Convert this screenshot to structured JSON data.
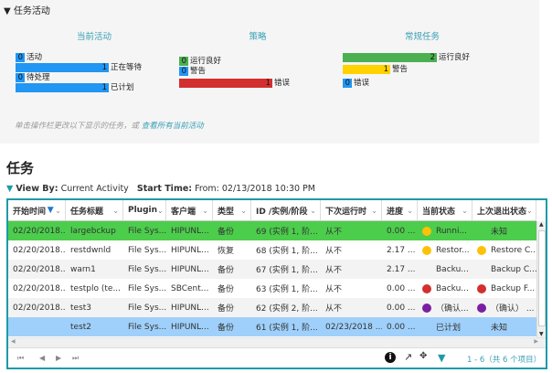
{
  "activity": {
    "title": "任务活动",
    "current": {
      "title": "当前活动",
      "items": [
        {
          "value": "0",
          "label": "活动",
          "fill": 0
        },
        {
          "value": "1",
          "label": "正在等待",
          "fill": 1
        },
        {
          "value": "0",
          "label": "待处理",
          "fill": 0
        },
        {
          "value": "1",
          "label": "已计划",
          "fill": 1
        }
      ]
    },
    "policy": {
      "title": "策略",
      "items": [
        {
          "value": "0",
          "label": "运行良好",
          "fill": 0
        },
        {
          "value": "0",
          "label": "警告",
          "fill": 0
        },
        {
          "value": "1",
          "label": "错误",
          "fill": 1
        }
      ]
    },
    "routine": {
      "title": "常规任务",
      "items": [
        {
          "value": "2",
          "label": "运行良好",
          "fill": 1
        },
        {
          "value": "1",
          "label": "警告",
          "fill": 0.5
        },
        {
          "value": "0",
          "label": "错误",
          "fill": 0
        }
      ]
    },
    "note": "单击操作栏更改以下显示的任务，或",
    "note_link": "查看所有当前活动"
  },
  "colors": {
    "blue": "#2196f3",
    "green": "#4caf50",
    "red": "#d32f2f",
    "yellow": "#ffd200",
    "teal": "#1d9aa8",
    "selected_row": "#9fd0fb",
    "running_row": "#4ccd4c"
  },
  "page_title": "任务",
  "viewby": {
    "label": "View By:",
    "value": "Current Activity",
    "start_label": "Start Time:",
    "start_value": "From: 02/13/2018 10:30 PM"
  },
  "table": {
    "columns": [
      "开始时间",
      "任务标题",
      "Plugin",
      "客户端",
      "类型",
      "ID /实例/阶段",
      "下次运行时",
      "进度",
      "当前状态",
      "上次退出状态"
    ],
    "rows": [
      [
        "02/20/2018...",
        "largebckup",
        "File Sys...",
        "HIPUNL...",
        "备份",
        "69 (实例 1, 阶...",
        "从不",
        "0.00 ...",
        "Runni...",
        "未知"
      ],
      [
        "02/20/2018...",
        "restdwnld",
        "File Sys...",
        "HIPUNL...",
        "恢复",
        "68 (实例 1, 阶...",
        "从不",
        "2.17 ...",
        "Restor...",
        "Restore C..."
      ],
      [
        "02/20/2018...",
        "warn1",
        "File Sys...",
        "HIPUNL...",
        "备份",
        "67 (实例 1, 阶...",
        "从不",
        "2.17 ...",
        "Backu...",
        "Backup C..."
      ],
      [
        "02/20/2018...",
        "testplo (te...",
        "File Sys...",
        "SBCent...",
        "备份",
        "63 (实例 1, 阶...",
        "从不",
        "0.00 ...",
        "Backu...",
        "Backup F..."
      ],
      [
        "02/20/2018...",
        "test3",
        "File Sys...",
        "HIPUNL...",
        "备份",
        "62 (实例 2, 阶...",
        "从不",
        "0.00 ...",
        "（确认...",
        "（确认） ..."
      ],
      [
        "",
        "test2",
        "File Sys...",
        "HIPUNL...",
        "备份",
        "61 (实例 1, 阶...",
        "02/23/2018 ...",
        "0.00 ...",
        "已计划",
        "未知"
      ]
    ],
    "status_dots": [
      [
        "#ffc107",
        null
      ],
      [
        "#ffc107",
        "#ffc107"
      ],
      [
        null,
        null
      ],
      [
        "#d32f2f",
        "#d32f2f"
      ],
      [
        "#7b1fa2",
        "#7b1fa2"
      ],
      [
        null,
        null
      ]
    ],
    "pagination": "1 - 6（共 6 个项目）"
  }
}
